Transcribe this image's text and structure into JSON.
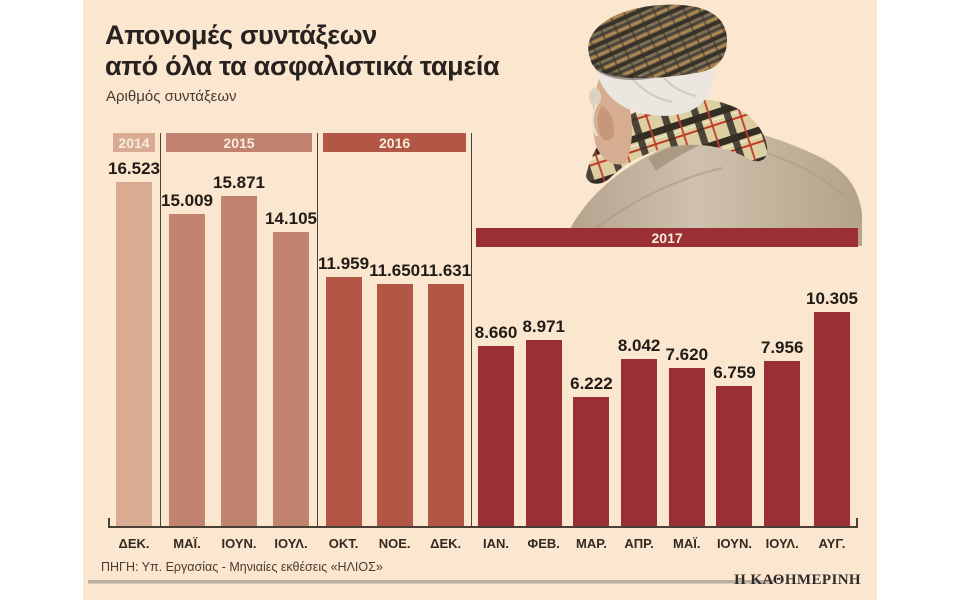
{
  "header": {
    "title_line1": "Απονομές συντάξεων",
    "title_line2": "από όλα τα ασφαλιστικά ταμεία",
    "subtitle": "Αριθμός συντάξεων"
  },
  "footer": {
    "source": "ΠΗΓΗ: Υπ. Εργασίας - Μηνιαίες εκθέσεις «ΗΛΙΟΣ»",
    "brand": "Η ΚΑΘΗΜΕΡΙΝΗ"
  },
  "photo": {
    "description": "elderly man seen from behind wearing tweed flat cap, plaid scarf and beige coat"
  },
  "colors": {
    "panel_bg": "#fbe6cf",
    "axis": "#4a4136",
    "value_text": "#211b16",
    "band_text": "#f8ecdc",
    "year_2014": "#d9ab92",
    "year_2015": "#c28270",
    "year_2016": "#b25745",
    "year_2017": "#9a2f35"
  },
  "chart_data": {
    "type": "bar",
    "title": "Απονομές συντάξεων από όλα τα ασφαλιστικά ταμεία",
    "ylabel": "Αριθμός συντάξεων",
    "xlabel": "",
    "ylim": [
      0,
      16523
    ],
    "grid": false,
    "legend_position": "year bands above each group",
    "categories": [
      "ΔΕΚ.",
      "ΜΑΪ.",
      "ΙΟΥΝ.",
      "ΙΟΥΛ.",
      "ΟΚΤ.",
      "ΝΟΕ.",
      "ΔΕΚ.",
      "ΙΑΝ.",
      "ΦΕΒ.",
      "ΜΑΡ.",
      "ΑΠΡ.",
      "ΜΑΪ.",
      "ΙΟΥΝ.",
      "ΙΟΥΛ.",
      "ΑΥΓ."
    ],
    "values": [
      16523,
      15009,
      15871,
      14105,
      11959,
      11650,
      11631,
      8660,
      8971,
      6222,
      8042,
      7620,
      6759,
      7956,
      10305
    ],
    "groups": [
      {
        "year": "2014",
        "color": "#d9ab92",
        "band_overlay": false,
        "months": [
          "ΔΕΚ."
        ],
        "values": [
          16523
        ],
        "labels": [
          "16.523"
        ]
      },
      {
        "year": "2015",
        "color": "#c28270",
        "band_overlay": false,
        "months": [
          "ΜΑΪ.",
          "ΙΟΥΝ.",
          "ΙΟΥΛ."
        ],
        "values": [
          15009,
          15871,
          14105
        ],
        "labels": [
          "15.009",
          "15.871",
          "14.105"
        ]
      },
      {
        "year": "2016",
        "color": "#b25745",
        "band_overlay": false,
        "months": [
          "ΟΚΤ.",
          "ΝΟΕ.",
          "ΔΕΚ."
        ],
        "values": [
          11959,
          11650,
          11631
        ],
        "labels": [
          "11.959",
          "11.650",
          "11.631"
        ]
      },
      {
        "year": "2017",
        "color": "#9a2f35",
        "band_overlay": true,
        "months": [
          "ΙΑΝ.",
          "ΦΕΒ.",
          "ΜΑΡ.",
          "ΑΠΡ.",
          "ΜΑΪ.",
          "ΙΟΥΝ.",
          "ΙΟΥΛ.",
          "ΑΥΓ."
        ],
        "values": [
          8660,
          8971,
          6222,
          8042,
          7620,
          6759,
          7956,
          10305
        ],
        "labels": [
          "8.660",
          "8.971",
          "6.222",
          "8.042",
          "7.620",
          "6.759",
          "7.956",
          "10.305"
        ]
      }
    ]
  }
}
